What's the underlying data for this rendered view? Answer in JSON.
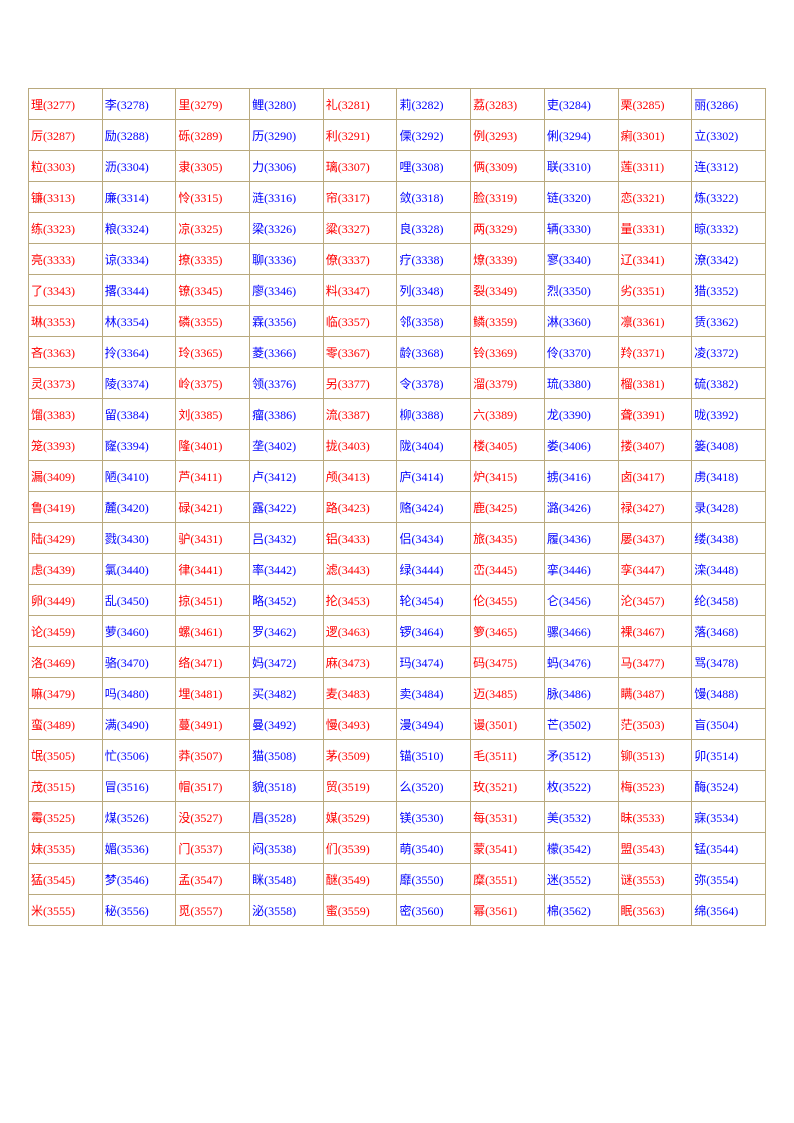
{
  "table": {
    "columns": 10,
    "cell_fontsize": 12,
    "font_family": "SimSun",
    "border_color": "#b9a97e",
    "background_color": "#ffffff",
    "colors": {
      "red": "#ff0000",
      "blue": "#0000ff"
    },
    "rows": [
      [
        [
          "理",
          "3277",
          "r"
        ],
        [
          "李",
          "3278",
          "b"
        ],
        [
          "里",
          "3279",
          "r"
        ],
        [
          "鲤",
          "3280",
          "b"
        ],
        [
          "礼",
          "3281",
          "r"
        ],
        [
          "莉",
          "3282",
          "b"
        ],
        [
          "荔",
          "3283",
          "r"
        ],
        [
          "吏",
          "3284",
          "b"
        ],
        [
          "栗",
          "3285",
          "r"
        ],
        [
          "丽",
          "3286",
          "b"
        ]
      ],
      [
        [
          "厉",
          "3287",
          "r"
        ],
        [
          "励",
          "3288",
          "b"
        ],
        [
          "砾",
          "3289",
          "r"
        ],
        [
          "历",
          "3290",
          "b"
        ],
        [
          "利",
          "3291",
          "r"
        ],
        [
          "傈",
          "3292",
          "b"
        ],
        [
          "例",
          "3293",
          "r"
        ],
        [
          "俐",
          "3294",
          "b"
        ],
        [
          "痢",
          "3301",
          "r"
        ],
        [
          "立",
          "3302",
          "b"
        ]
      ],
      [
        [
          "粒",
          "3303",
          "r"
        ],
        [
          "沥",
          "3304",
          "b"
        ],
        [
          "隶",
          "3305",
          "r"
        ],
        [
          "力",
          "3306",
          "b"
        ],
        [
          "璃",
          "3307",
          "r"
        ],
        [
          "哩",
          "3308",
          "b"
        ],
        [
          "俩",
          "3309",
          "r"
        ],
        [
          "联",
          "3310",
          "b"
        ],
        [
          "莲",
          "3311",
          "r"
        ],
        [
          "连",
          "3312",
          "b"
        ]
      ],
      [
        [
          "镰",
          "3313",
          "r"
        ],
        [
          "廉",
          "3314",
          "b"
        ],
        [
          "怜",
          "3315",
          "r"
        ],
        [
          "涟",
          "3316",
          "b"
        ],
        [
          "帘",
          "3317",
          "r"
        ],
        [
          "敛",
          "3318",
          "b"
        ],
        [
          "脸",
          "3319",
          "r"
        ],
        [
          "链",
          "3320",
          "b"
        ],
        [
          "恋",
          "3321",
          "r"
        ],
        [
          "炼",
          "3322",
          "b"
        ]
      ],
      [
        [
          "练",
          "3323",
          "r"
        ],
        [
          "粮",
          "3324",
          "b"
        ],
        [
          "凉",
          "3325",
          "r"
        ],
        [
          "梁",
          "3326",
          "b"
        ],
        [
          "粱",
          "3327",
          "r"
        ],
        [
          "良",
          "3328",
          "b"
        ],
        [
          "两",
          "3329",
          "r"
        ],
        [
          "辆",
          "3330",
          "b"
        ],
        [
          "量",
          "3331",
          "r"
        ],
        [
          "晾",
          "3332",
          "b"
        ]
      ],
      [
        [
          "亮",
          "3333",
          "r"
        ],
        [
          "谅",
          "3334",
          "b"
        ],
        [
          "撩",
          "3335",
          "r"
        ],
        [
          "聊",
          "3336",
          "b"
        ],
        [
          "僚",
          "3337",
          "r"
        ],
        [
          "疗",
          "3338",
          "b"
        ],
        [
          "燎",
          "3339",
          "r"
        ],
        [
          "寥",
          "3340",
          "b"
        ],
        [
          "辽",
          "3341",
          "r"
        ],
        [
          "潦",
          "3342",
          "b"
        ]
      ],
      [
        [
          "了",
          "3343",
          "r"
        ],
        [
          "撂",
          "3344",
          "b"
        ],
        [
          "镣",
          "3345",
          "r"
        ],
        [
          "廖",
          "3346",
          "b"
        ],
        [
          "料",
          "3347",
          "r"
        ],
        [
          "列",
          "3348",
          "b"
        ],
        [
          "裂",
          "3349",
          "r"
        ],
        [
          "烈",
          "3350",
          "b"
        ],
        [
          "劣",
          "3351",
          "r"
        ],
        [
          "猎",
          "3352",
          "b"
        ]
      ],
      [
        [
          "琳",
          "3353",
          "r"
        ],
        [
          "林",
          "3354",
          "b"
        ],
        [
          "磷",
          "3355",
          "r"
        ],
        [
          "霖",
          "3356",
          "b"
        ],
        [
          "临",
          "3357",
          "r"
        ],
        [
          "邻",
          "3358",
          "b"
        ],
        [
          "鳞",
          "3359",
          "r"
        ],
        [
          "淋",
          "3360",
          "b"
        ],
        [
          "凛",
          "3361",
          "r"
        ],
        [
          "赁",
          "3362",
          "b"
        ]
      ],
      [
        [
          "吝",
          "3363",
          "r"
        ],
        [
          "拎",
          "3364",
          "b"
        ],
        [
          "玲",
          "3365",
          "r"
        ],
        [
          "菱",
          "3366",
          "b"
        ],
        [
          "零",
          "3367",
          "r"
        ],
        [
          "龄",
          "3368",
          "b"
        ],
        [
          "铃",
          "3369",
          "r"
        ],
        [
          "伶",
          "3370",
          "b"
        ],
        [
          "羚",
          "3371",
          "r"
        ],
        [
          "凌",
          "3372",
          "b"
        ]
      ],
      [
        [
          "灵",
          "3373",
          "r"
        ],
        [
          "陵",
          "3374",
          "b"
        ],
        [
          "岭",
          "3375",
          "r"
        ],
        [
          "领",
          "3376",
          "b"
        ],
        [
          "另",
          "3377",
          "r"
        ],
        [
          "令",
          "3378",
          "b"
        ],
        [
          "溜",
          "3379",
          "r"
        ],
        [
          "琉",
          "3380",
          "b"
        ],
        [
          "榴",
          "3381",
          "r"
        ],
        [
          "硫",
          "3382",
          "b"
        ]
      ],
      [
        [
          "馏",
          "3383",
          "r"
        ],
        [
          "留",
          "3384",
          "b"
        ],
        [
          "刘",
          "3385",
          "r"
        ],
        [
          "瘤",
          "3386",
          "b"
        ],
        [
          "流",
          "3387",
          "r"
        ],
        [
          "柳",
          "3388",
          "b"
        ],
        [
          "六",
          "3389",
          "r"
        ],
        [
          "龙",
          "3390",
          "b"
        ],
        [
          "聋",
          "3391",
          "r"
        ],
        [
          "咙",
          "3392",
          "b"
        ]
      ],
      [
        [
          "笼",
          "3393",
          "r"
        ],
        [
          "窿",
          "3394",
          "b"
        ],
        [
          "隆",
          "3401",
          "r"
        ],
        [
          "垄",
          "3402",
          "b"
        ],
        [
          "拢",
          "3403",
          "r"
        ],
        [
          "陇",
          "3404",
          "b"
        ],
        [
          "楼",
          "3405",
          "r"
        ],
        [
          "娄",
          "3406",
          "b"
        ],
        [
          "搂",
          "3407",
          "r"
        ],
        [
          "篓",
          "3408",
          "b"
        ]
      ],
      [
        [
          "漏",
          "3409",
          "r"
        ],
        [
          "陋",
          "3410",
          "b"
        ],
        [
          "芦",
          "3411",
          "r"
        ],
        [
          "卢",
          "3412",
          "b"
        ],
        [
          "颅",
          "3413",
          "r"
        ],
        [
          "庐",
          "3414",
          "b"
        ],
        [
          "炉",
          "3415",
          "r"
        ],
        [
          "掳",
          "3416",
          "b"
        ],
        [
          "卤",
          "3417",
          "r"
        ],
        [
          "虏",
          "3418",
          "b"
        ]
      ],
      [
        [
          "鲁",
          "3419",
          "r"
        ],
        [
          "麓",
          "3420",
          "b"
        ],
        [
          "碌",
          "3421",
          "r"
        ],
        [
          "露",
          "3422",
          "b"
        ],
        [
          "路",
          "3423",
          "r"
        ],
        [
          "赂",
          "3424",
          "b"
        ],
        [
          "鹿",
          "3425",
          "r"
        ],
        [
          "潞",
          "3426",
          "b"
        ],
        [
          "禄",
          "3427",
          "r"
        ],
        [
          "录",
          "3428",
          "b"
        ]
      ],
      [
        [
          "陆",
          "3429",
          "r"
        ],
        [
          "戮",
          "3430",
          "b"
        ],
        [
          "驴",
          "3431",
          "r"
        ],
        [
          "吕",
          "3432",
          "b"
        ],
        [
          "铝",
          "3433",
          "r"
        ],
        [
          "侣",
          "3434",
          "b"
        ],
        [
          "旅",
          "3435",
          "r"
        ],
        [
          "履",
          "3436",
          "b"
        ],
        [
          "屡",
          "3437",
          "r"
        ],
        [
          "缕",
          "3438",
          "b"
        ]
      ],
      [
        [
          "虑",
          "3439",
          "r"
        ],
        [
          "氯",
          "3440",
          "b"
        ],
        [
          "律",
          "3441",
          "r"
        ],
        [
          "率",
          "3442",
          "b"
        ],
        [
          "滤",
          "3443",
          "r"
        ],
        [
          "绿",
          "3444",
          "b"
        ],
        [
          "峦",
          "3445",
          "r"
        ],
        [
          "挛",
          "3446",
          "b"
        ],
        [
          "孪",
          "3447",
          "r"
        ],
        [
          "滦",
          "3448",
          "b"
        ]
      ],
      [
        [
          "卵",
          "3449",
          "r"
        ],
        [
          "乱",
          "3450",
          "b"
        ],
        [
          "掠",
          "3451",
          "r"
        ],
        [
          "略",
          "3452",
          "b"
        ],
        [
          "抡",
          "3453",
          "r"
        ],
        [
          "轮",
          "3454",
          "b"
        ],
        [
          "伦",
          "3455",
          "r"
        ],
        [
          "仑",
          "3456",
          "b"
        ],
        [
          "沦",
          "3457",
          "r"
        ],
        [
          "纶",
          "3458",
          "b"
        ]
      ],
      [
        [
          "论",
          "3459",
          "r"
        ],
        [
          "萝",
          "3460",
          "b"
        ],
        [
          "螺",
          "3461",
          "r"
        ],
        [
          "罗",
          "3462",
          "b"
        ],
        [
          "逻",
          "3463",
          "r"
        ],
        [
          "锣",
          "3464",
          "b"
        ],
        [
          "箩",
          "3465",
          "r"
        ],
        [
          "骡",
          "3466",
          "b"
        ],
        [
          "裸",
          "3467",
          "r"
        ],
        [
          "落",
          "3468",
          "b"
        ]
      ],
      [
        [
          "洛",
          "3469",
          "r"
        ],
        [
          "骆",
          "3470",
          "b"
        ],
        [
          "络",
          "3471",
          "r"
        ],
        [
          "妈",
          "3472",
          "b"
        ],
        [
          "麻",
          "3473",
          "r"
        ],
        [
          "玛",
          "3474",
          "b"
        ],
        [
          "码",
          "3475",
          "r"
        ],
        [
          "蚂",
          "3476",
          "b"
        ],
        [
          "马",
          "3477",
          "r"
        ],
        [
          "骂",
          "3478",
          "b"
        ]
      ],
      [
        [
          "嘛",
          "3479",
          "r"
        ],
        [
          "吗",
          "3480",
          "b"
        ],
        [
          "埋",
          "3481",
          "r"
        ],
        [
          "买",
          "3482",
          "b"
        ],
        [
          "麦",
          "3483",
          "r"
        ],
        [
          "卖",
          "3484",
          "b"
        ],
        [
          "迈",
          "3485",
          "r"
        ],
        [
          "脉",
          "3486",
          "b"
        ],
        [
          "瞒",
          "3487",
          "r"
        ],
        [
          "馒",
          "3488",
          "b"
        ]
      ],
      [
        [
          "蛮",
          "3489",
          "r"
        ],
        [
          "满",
          "3490",
          "b"
        ],
        [
          "蔓",
          "3491",
          "r"
        ],
        [
          "曼",
          "3492",
          "b"
        ],
        [
          "慢",
          "3493",
          "r"
        ],
        [
          "漫",
          "3494",
          "b"
        ],
        [
          "谩",
          "3501",
          "r"
        ],
        [
          "芒",
          "3502",
          "b"
        ],
        [
          "茫",
          "3503",
          "r"
        ],
        [
          "盲",
          "3504",
          "b"
        ]
      ],
      [
        [
          "氓",
          "3505",
          "r"
        ],
        [
          "忙",
          "3506",
          "b"
        ],
        [
          "莽",
          "3507",
          "r"
        ],
        [
          "猫",
          "3508",
          "b"
        ],
        [
          "茅",
          "3509",
          "r"
        ],
        [
          "锚",
          "3510",
          "b"
        ],
        [
          "毛",
          "3511",
          "r"
        ],
        [
          "矛",
          "3512",
          "b"
        ],
        [
          "铆",
          "3513",
          "r"
        ],
        [
          "卯",
          "3514",
          "b"
        ]
      ],
      [
        [
          "茂",
          "3515",
          "r"
        ],
        [
          "冒",
          "3516",
          "b"
        ],
        [
          "帽",
          "3517",
          "r"
        ],
        [
          "貌",
          "3518",
          "b"
        ],
        [
          "贸",
          "3519",
          "r"
        ],
        [
          "么",
          "3520",
          "b"
        ],
        [
          "玫",
          "3521",
          "r"
        ],
        [
          "枚",
          "3522",
          "b"
        ],
        [
          "梅",
          "3523",
          "r"
        ],
        [
          "酶",
          "3524",
          "b"
        ]
      ],
      [
        [
          "霉",
          "3525",
          "r"
        ],
        [
          "煤",
          "3526",
          "b"
        ],
        [
          "没",
          "3527",
          "r"
        ],
        [
          "眉",
          "3528",
          "b"
        ],
        [
          "媒",
          "3529",
          "r"
        ],
        [
          "镁",
          "3530",
          "b"
        ],
        [
          "每",
          "3531",
          "r"
        ],
        [
          "美",
          "3532",
          "b"
        ],
        [
          "昧",
          "3533",
          "r"
        ],
        [
          "寐",
          "3534",
          "b"
        ]
      ],
      [
        [
          "妹",
          "3535",
          "r"
        ],
        [
          "媚",
          "3536",
          "b"
        ],
        [
          "门",
          "3537",
          "r"
        ],
        [
          "闷",
          "3538",
          "b"
        ],
        [
          "们",
          "3539",
          "r"
        ],
        [
          "萌",
          "3540",
          "b"
        ],
        [
          "蒙",
          "3541",
          "r"
        ],
        [
          "檬",
          "3542",
          "b"
        ],
        [
          "盟",
          "3543",
          "r"
        ],
        [
          "锰",
          "3544",
          "b"
        ]
      ],
      [
        [
          "猛",
          "3545",
          "r"
        ],
        [
          "梦",
          "3546",
          "b"
        ],
        [
          "孟",
          "3547",
          "r"
        ],
        [
          "眯",
          "3548",
          "b"
        ],
        [
          "醚",
          "3549",
          "r"
        ],
        [
          "靡",
          "3550",
          "b"
        ],
        [
          "糜",
          "3551",
          "r"
        ],
        [
          "迷",
          "3552",
          "b"
        ],
        [
          "谜",
          "3553",
          "r"
        ],
        [
          "弥",
          "3554",
          "b"
        ]
      ],
      [
        [
          "米",
          "3555",
          "r"
        ],
        [
          "秘",
          "3556",
          "b"
        ],
        [
          "觅",
          "3557",
          "r"
        ],
        [
          "泌",
          "3558",
          "b"
        ],
        [
          "蜜",
          "3559",
          "r"
        ],
        [
          "密",
          "3560",
          "b"
        ],
        [
          "幂",
          "3561",
          "r"
        ],
        [
          "棉",
          "3562",
          "b"
        ],
        [
          "眠",
          "3563",
          "r"
        ],
        [
          "绵",
          "3564",
          "b"
        ]
      ]
    ]
  }
}
